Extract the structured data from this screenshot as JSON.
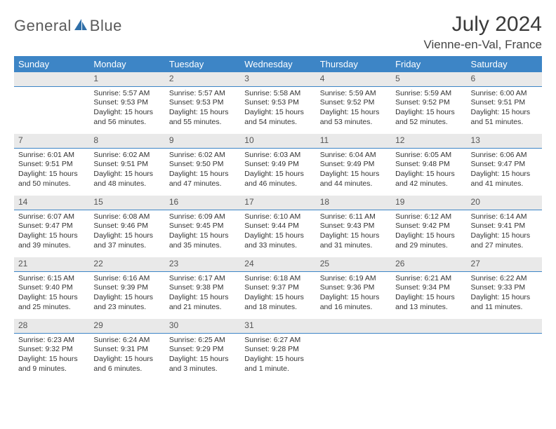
{
  "brand": {
    "word1": "General",
    "word2": "Blue"
  },
  "title": "July 2024",
  "location": "Vienne-en-Val, France",
  "colors": {
    "header_bg": "#3d85c6",
    "header_fg": "#ffffff",
    "daynum_bg": "#e9e9e9",
    "daynum_border": "#3d85c6",
    "page_bg": "#ffffff",
    "text": "#333333",
    "logo_gray": "#5a5a5a",
    "logo_blue": "#2f6fa8"
  },
  "typography": {
    "month_title_fontsize": 30,
    "location_fontsize": 17,
    "weekday_fontsize": 13,
    "daynum_fontsize": 12,
    "body_fontsize": 10.5
  },
  "weekdays": [
    "Sunday",
    "Monday",
    "Tuesday",
    "Wednesday",
    "Thursday",
    "Friday",
    "Saturday"
  ],
  "calendar": {
    "type": "table",
    "columns": 7,
    "rows": 5,
    "first_weekday_index": 1,
    "days": [
      {
        "n": "1",
        "sunrise": "Sunrise: 5:57 AM",
        "sunset": "Sunset: 9:53 PM",
        "daylight": "Daylight: 15 hours and 56 minutes."
      },
      {
        "n": "2",
        "sunrise": "Sunrise: 5:57 AM",
        "sunset": "Sunset: 9:53 PM",
        "daylight": "Daylight: 15 hours and 55 minutes."
      },
      {
        "n": "3",
        "sunrise": "Sunrise: 5:58 AM",
        "sunset": "Sunset: 9:53 PM",
        "daylight": "Daylight: 15 hours and 54 minutes."
      },
      {
        "n": "4",
        "sunrise": "Sunrise: 5:59 AM",
        "sunset": "Sunset: 9:52 PM",
        "daylight": "Daylight: 15 hours and 53 minutes."
      },
      {
        "n": "5",
        "sunrise": "Sunrise: 5:59 AM",
        "sunset": "Sunset: 9:52 PM",
        "daylight": "Daylight: 15 hours and 52 minutes."
      },
      {
        "n": "6",
        "sunrise": "Sunrise: 6:00 AM",
        "sunset": "Sunset: 9:51 PM",
        "daylight": "Daylight: 15 hours and 51 minutes."
      },
      {
        "n": "7",
        "sunrise": "Sunrise: 6:01 AM",
        "sunset": "Sunset: 9:51 PM",
        "daylight": "Daylight: 15 hours and 50 minutes."
      },
      {
        "n": "8",
        "sunrise": "Sunrise: 6:02 AM",
        "sunset": "Sunset: 9:51 PM",
        "daylight": "Daylight: 15 hours and 48 minutes."
      },
      {
        "n": "9",
        "sunrise": "Sunrise: 6:02 AM",
        "sunset": "Sunset: 9:50 PM",
        "daylight": "Daylight: 15 hours and 47 minutes."
      },
      {
        "n": "10",
        "sunrise": "Sunrise: 6:03 AM",
        "sunset": "Sunset: 9:49 PM",
        "daylight": "Daylight: 15 hours and 46 minutes."
      },
      {
        "n": "11",
        "sunrise": "Sunrise: 6:04 AM",
        "sunset": "Sunset: 9:49 PM",
        "daylight": "Daylight: 15 hours and 44 minutes."
      },
      {
        "n": "12",
        "sunrise": "Sunrise: 6:05 AM",
        "sunset": "Sunset: 9:48 PM",
        "daylight": "Daylight: 15 hours and 42 minutes."
      },
      {
        "n": "13",
        "sunrise": "Sunrise: 6:06 AM",
        "sunset": "Sunset: 9:47 PM",
        "daylight": "Daylight: 15 hours and 41 minutes."
      },
      {
        "n": "14",
        "sunrise": "Sunrise: 6:07 AM",
        "sunset": "Sunset: 9:47 PM",
        "daylight": "Daylight: 15 hours and 39 minutes."
      },
      {
        "n": "15",
        "sunrise": "Sunrise: 6:08 AM",
        "sunset": "Sunset: 9:46 PM",
        "daylight": "Daylight: 15 hours and 37 minutes."
      },
      {
        "n": "16",
        "sunrise": "Sunrise: 6:09 AM",
        "sunset": "Sunset: 9:45 PM",
        "daylight": "Daylight: 15 hours and 35 minutes."
      },
      {
        "n": "17",
        "sunrise": "Sunrise: 6:10 AM",
        "sunset": "Sunset: 9:44 PM",
        "daylight": "Daylight: 15 hours and 33 minutes."
      },
      {
        "n": "18",
        "sunrise": "Sunrise: 6:11 AM",
        "sunset": "Sunset: 9:43 PM",
        "daylight": "Daylight: 15 hours and 31 minutes."
      },
      {
        "n": "19",
        "sunrise": "Sunrise: 6:12 AM",
        "sunset": "Sunset: 9:42 PM",
        "daylight": "Daylight: 15 hours and 29 minutes."
      },
      {
        "n": "20",
        "sunrise": "Sunrise: 6:14 AM",
        "sunset": "Sunset: 9:41 PM",
        "daylight": "Daylight: 15 hours and 27 minutes."
      },
      {
        "n": "21",
        "sunrise": "Sunrise: 6:15 AM",
        "sunset": "Sunset: 9:40 PM",
        "daylight": "Daylight: 15 hours and 25 minutes."
      },
      {
        "n": "22",
        "sunrise": "Sunrise: 6:16 AM",
        "sunset": "Sunset: 9:39 PM",
        "daylight": "Daylight: 15 hours and 23 minutes."
      },
      {
        "n": "23",
        "sunrise": "Sunrise: 6:17 AM",
        "sunset": "Sunset: 9:38 PM",
        "daylight": "Daylight: 15 hours and 21 minutes."
      },
      {
        "n": "24",
        "sunrise": "Sunrise: 6:18 AM",
        "sunset": "Sunset: 9:37 PM",
        "daylight": "Daylight: 15 hours and 18 minutes."
      },
      {
        "n": "25",
        "sunrise": "Sunrise: 6:19 AM",
        "sunset": "Sunset: 9:36 PM",
        "daylight": "Daylight: 15 hours and 16 minutes."
      },
      {
        "n": "26",
        "sunrise": "Sunrise: 6:21 AM",
        "sunset": "Sunset: 9:34 PM",
        "daylight": "Daylight: 15 hours and 13 minutes."
      },
      {
        "n": "27",
        "sunrise": "Sunrise: 6:22 AM",
        "sunset": "Sunset: 9:33 PM",
        "daylight": "Daylight: 15 hours and 11 minutes."
      },
      {
        "n": "28",
        "sunrise": "Sunrise: 6:23 AM",
        "sunset": "Sunset: 9:32 PM",
        "daylight": "Daylight: 15 hours and 9 minutes."
      },
      {
        "n": "29",
        "sunrise": "Sunrise: 6:24 AM",
        "sunset": "Sunset: 9:31 PM",
        "daylight": "Daylight: 15 hours and 6 minutes."
      },
      {
        "n": "30",
        "sunrise": "Sunrise: 6:25 AM",
        "sunset": "Sunset: 9:29 PM",
        "daylight": "Daylight: 15 hours and 3 minutes."
      },
      {
        "n": "31",
        "sunrise": "Sunrise: 6:27 AM",
        "sunset": "Sunset: 9:28 PM",
        "daylight": "Daylight: 15 hours and 1 minute."
      }
    ]
  }
}
